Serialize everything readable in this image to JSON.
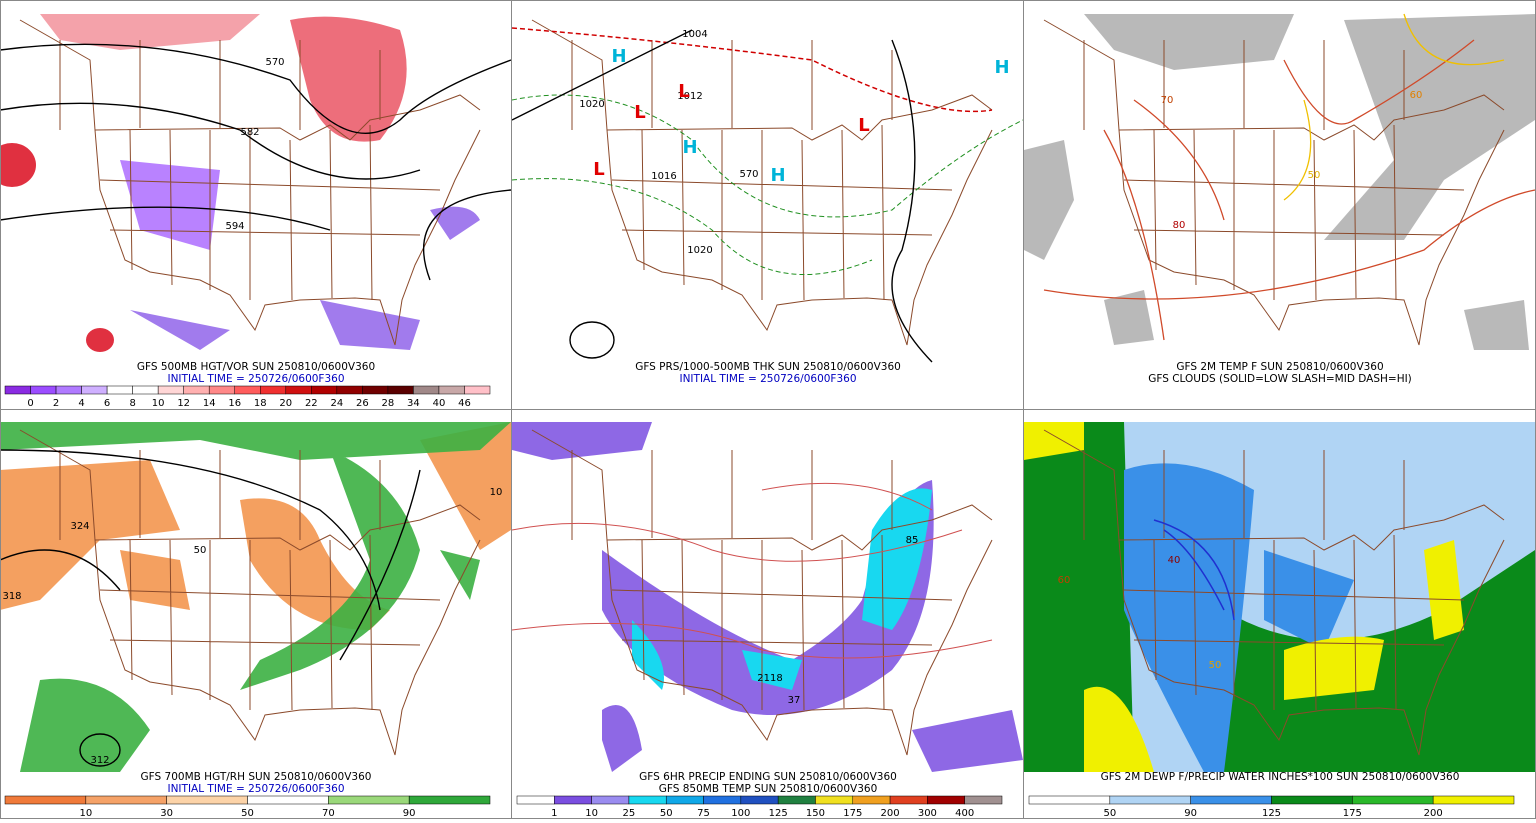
{
  "panels": [
    {
      "captions": [
        "GFS 500MB HGT/VOR SUN 250810/0600V360",
        "INITIAL TIME = 250726/0600F360"
      ],
      "caption_colors": [
        "#000000",
        "#0000c0"
      ],
      "colorbar": {
        "colors": [
          "#8a2be2",
          "#9b4dff",
          "#b07aff",
          "#cfb0ff",
          "#ffffff",
          "#ffffff",
          "#ffd6d6",
          "#ffb0b0",
          "#ff8888",
          "#ff5c5c",
          "#f03030",
          "#d01010",
          "#b00000",
          "#900000",
          "#700000",
          "#5a0000",
          "#a08888",
          "#c8a8a8",
          "#ffc0c8"
        ],
        "labels": [
          0,
          2,
          4,
          6,
          8,
          10,
          12,
          14,
          16,
          18,
          20,
          22,
          24,
          26,
          28,
          34,
          40,
          46
        ]
      },
      "map_labels": [
        {
          "text": "570",
          "color": "#000000"
        },
        {
          "text": "582",
          "color": "#000000"
        },
        {
          "text": "594",
          "color": "#000000"
        }
      ]
    },
    {
      "captions": [
        "GFS PRS/1000-500MB THK SUN 250810/0600V360",
        "INITIAL TIME = 250726/0600F360"
      ],
      "caption_colors": [
        "#000000",
        "#0000c0"
      ],
      "map_labels": [
        {
          "text": "1004",
          "color": "#000000"
        },
        {
          "text": "1012",
          "color": "#000000"
        },
        {
          "text": "1020",
          "color": "#000000"
        },
        {
          "text": "1016",
          "color": "#000000"
        },
        {
          "text": "1020",
          "color": "#000000"
        },
        {
          "text": "570",
          "color": "#000000"
        },
        {
          "text": "H",
          "color": "#00b4d8"
        },
        {
          "text": "L",
          "color": "#e00000"
        },
        {
          "text": "L",
          "color": "#e00000"
        },
        {
          "text": "H",
          "color": "#00b4d8"
        },
        {
          "text": "L",
          "color": "#e00000"
        },
        {
          "text": "H",
          "color": "#00b4d8"
        },
        {
          "text": "H",
          "color": "#00b4d8"
        },
        {
          "text": "L",
          "color": "#e00000"
        }
      ]
    },
    {
      "captions": [
        "GFS 2M TEMP F SUN 250810/0600V360",
        "GFS CLOUDS (SOLID=LOW SLASH=MID DASH=HI)"
      ],
      "caption_colors": [
        "#000000",
        "#000000"
      ],
      "map_labels": [
        {
          "text": "70",
          "color": "#c04000"
        },
        {
          "text": "80",
          "color": "#b00000"
        },
        {
          "text": "60",
          "color": "#e08000"
        },
        {
          "text": "50",
          "color": "#e0b000"
        }
      ]
    },
    {
      "captions": [
        "GFS 700MB HGT/RH SUN 250810/0600V360",
        "INITIAL TIME = 250726/0600F360"
      ],
      "caption_colors": [
        "#000000",
        "#0000c0"
      ],
      "colorbar": {
        "colors": [
          "#f07a3a",
          "#f5a268",
          "#fcd3a8",
          "#ffffff",
          "#9ad87a",
          "#2fa83a"
        ],
        "labels": [
          10,
          30,
          50,
          70,
          90
        ]
      },
      "map_labels": [
        {
          "text": "324",
          "color": "#000000"
        },
        {
          "text": "318",
          "color": "#000000"
        },
        {
          "text": "312",
          "color": "#000000"
        },
        {
          "text": "50",
          "color": "#000000"
        },
        {
          "text": "10",
          "color": "#000000"
        }
      ]
    },
    {
      "captions": [
        "GFS 6HR PRECIP ENDING SUN 250810/0600V360",
        "GFS 850MB TEMP SUN 250810/0600V360"
      ],
      "caption_colors": [
        "#000000",
        "#000000"
      ],
      "colorbar": {
        "colors": [
          "#ffffff",
          "#7a4ee0",
          "#9a8cf0",
          "#18d8f0",
          "#10a8e8",
          "#2070e0",
          "#2050c0",
          "#208040",
          "#f0e020",
          "#f0a020",
          "#e04020",
          "#a00000",
          "#a09090"
        ],
        "labels": [
          1,
          10,
          25,
          50,
          75,
          100,
          125,
          150,
          175,
          200,
          300,
          400
        ]
      },
      "map_labels": [
        {
          "text": "2118",
          "color": "#000000"
        },
        {
          "text": "37",
          "color": "#000000"
        },
        {
          "text": "85",
          "color": "#000000"
        }
      ]
    },
    {
      "captions": [
        "GFS 2M DEWP F/PRECIP WATER INCHES*100 SUN 250810/0600V360"
      ],
      "caption_colors": [
        "#000000"
      ],
      "colorbar": {
        "colors": [
          "#ffffff",
          "#b0d4f4",
          "#3a90e8",
          "#0a8a1a",
          "#2ab82a",
          "#f0f000"
        ],
        "labels": [
          50,
          90,
          125,
          175,
          200
        ]
      },
      "map_labels": [
        {
          "text": "50",
          "color": "#e0a000"
        },
        {
          "text": "60",
          "color": "#c04000"
        },
        {
          "text": "40",
          "color": "#8a0000"
        }
      ]
    }
  ]
}
